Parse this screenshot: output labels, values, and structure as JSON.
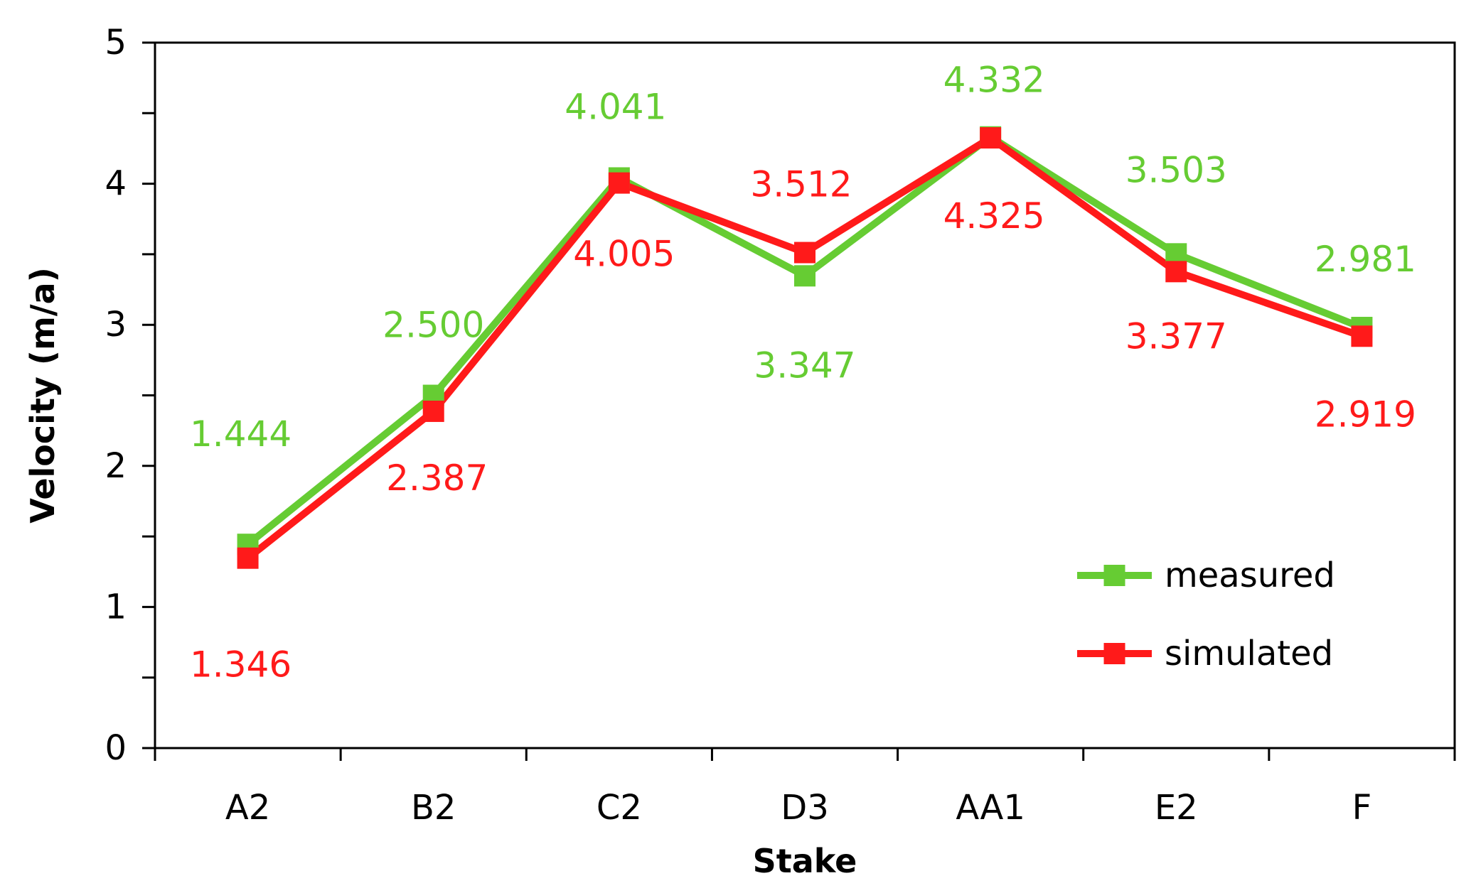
{
  "chart_data": {
    "type": "line",
    "xlabel": "Stake",
    "ylabel": "Velocity (m/a)",
    "categories": [
      "A2",
      "B2",
      "C2",
      "D3",
      "AA1",
      "E2",
      "F"
    ],
    "ylim": [
      0,
      5
    ],
    "yticks": [
      0,
      1,
      2,
      3,
      4,
      5
    ],
    "grid": false,
    "legend_position": "bottom-right",
    "series": [
      {
        "name": "measured",
        "color": "#66cc33",
        "marker": "square",
        "values": [
          1.444,
          2.5,
          4.041,
          3.347,
          4.332,
          3.503,
          2.981
        ],
        "labels": [
          "1.444",
          "2.500",
          "4.041",
          "3.347",
          "4.332",
          "3.503",
          "2.981"
        ]
      },
      {
        "name": "simulated",
        "color": "#ff1a1a",
        "marker": "square",
        "values": [
          1.346,
          2.387,
          4.005,
          3.512,
          4.325,
          3.377,
          2.919
        ],
        "labels": [
          "1.346",
          "2.387",
          "4.005",
          "3.512",
          "4.325",
          "3.377",
          "2.919"
        ]
      }
    ]
  }
}
